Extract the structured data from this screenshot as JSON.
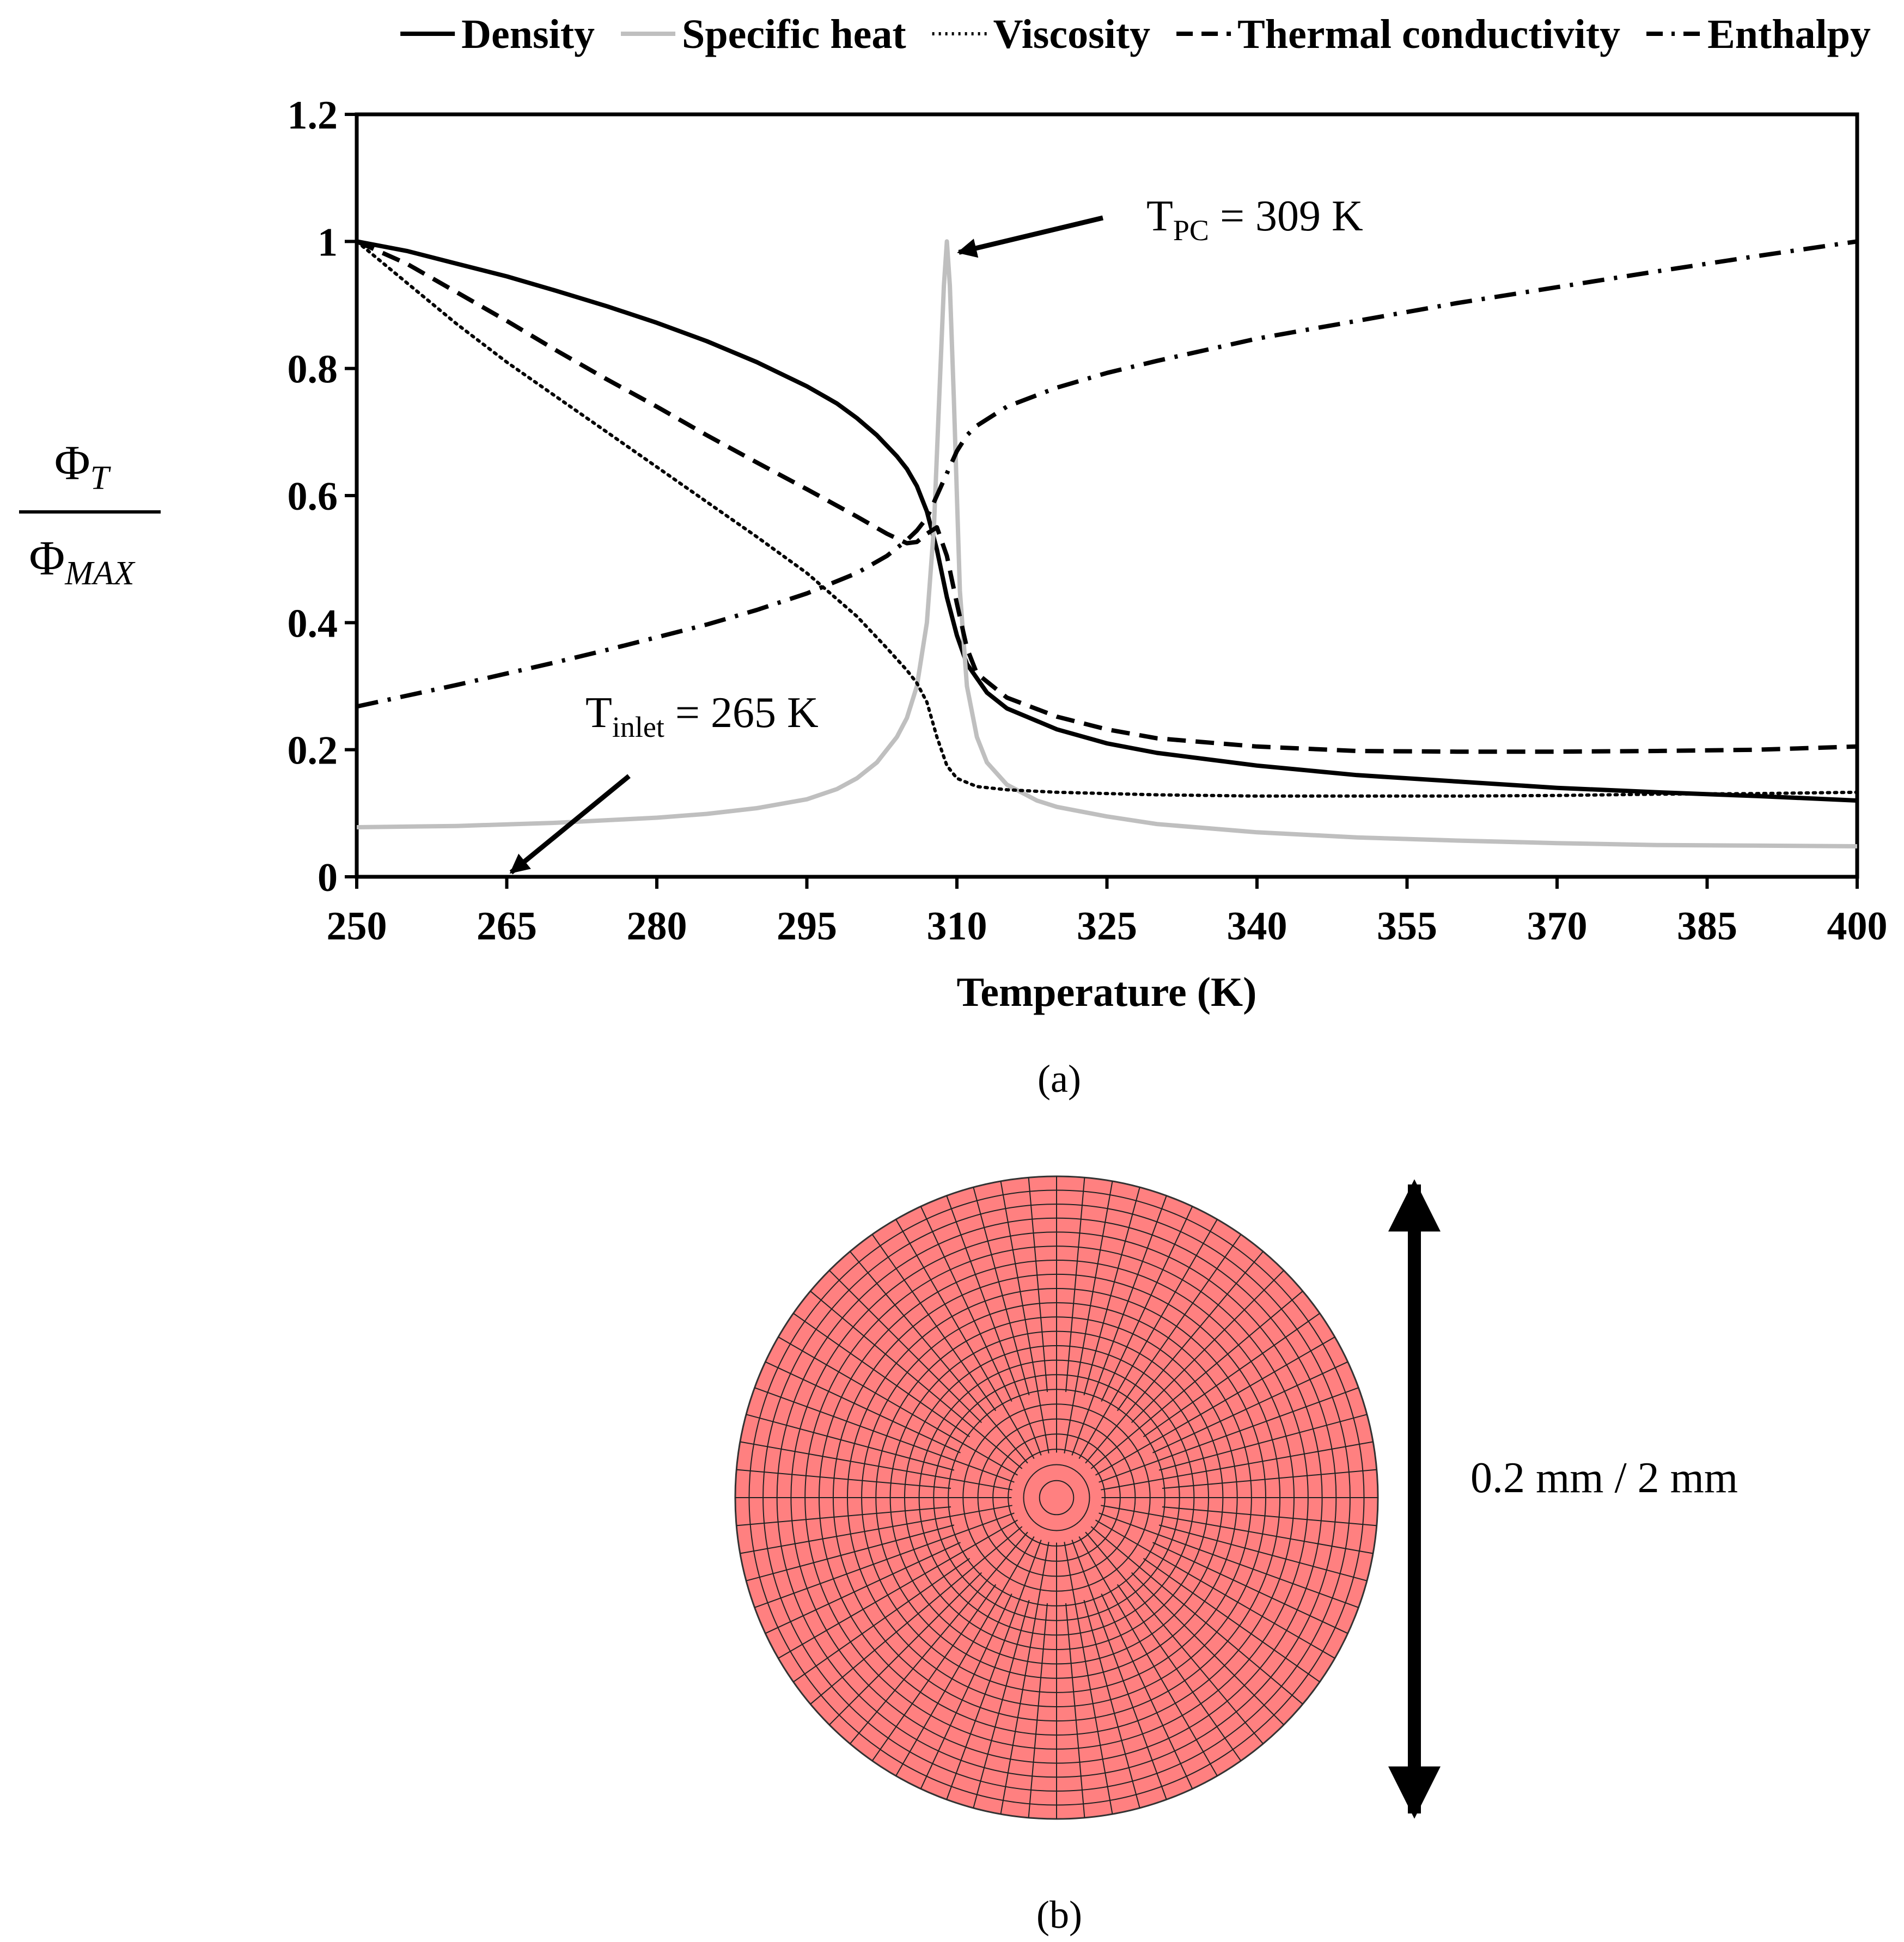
{
  "panel_a_caption": "(a)",
  "panel_b_caption": "(b)",
  "chart_data": {
    "type": "line",
    "title": "",
    "xlabel": "Temperature (K)",
    "ylabel": {
      "numerator": "Φ",
      "numerator_sub": "T",
      "denominator": "Φ",
      "denominator_sub": "MAX"
    },
    "xlim": [
      250,
      400
    ],
    "ylim": [
      0,
      1.2
    ],
    "xticks": [
      "250",
      "265",
      "280",
      "295",
      "310",
      "325",
      "340",
      "355",
      "370",
      "385",
      "400"
    ],
    "yticks": [
      "0",
      "0.2",
      "0.4",
      "0.6",
      "0.8",
      "1",
      "1.2"
    ],
    "legend_position": "top",
    "series": [
      {
        "name": "Density",
        "color": "#000000",
        "style": "solid",
        "points": [
          [
            250,
            1.0
          ],
          [
            255,
            0.985
          ],
          [
            260,
            0.965
          ],
          [
            265,
            0.945
          ],
          [
            270,
            0.922
          ],
          [
            275,
            0.898
          ],
          [
            280,
            0.872
          ],
          [
            285,
            0.843
          ],
          [
            290,
            0.81
          ],
          [
            295,
            0.772
          ],
          [
            298,
            0.745
          ],
          [
            300,
            0.722
          ],
          [
            302,
            0.695
          ],
          [
            304,
            0.662
          ],
          [
            305,
            0.642
          ],
          [
            306,
            0.615
          ],
          [
            307,
            0.575
          ],
          [
            308,
            0.515
          ],
          [
            309,
            0.44
          ],
          [
            310,
            0.38
          ],
          [
            311,
            0.335
          ],
          [
            313,
            0.29
          ],
          [
            315,
            0.265
          ],
          [
            320,
            0.232
          ],
          [
            325,
            0.21
          ],
          [
            330,
            0.195
          ],
          [
            340,
            0.175
          ],
          [
            350,
            0.16
          ],
          [
            360,
            0.15
          ],
          [
            370,
            0.14
          ],
          [
            380,
            0.133
          ],
          [
            390,
            0.127
          ],
          [
            400,
            0.12
          ]
        ]
      },
      {
        "name": "Specific heat",
        "color": "#bfbfbf",
        "style": "solid",
        "points": [
          [
            250,
            0.078
          ],
          [
            260,
            0.08
          ],
          [
            270,
            0.085
          ],
          [
            280,
            0.093
          ],
          [
            285,
            0.099
          ],
          [
            290,
            0.108
          ],
          [
            295,
            0.122
          ],
          [
            298,
            0.138
          ],
          [
            300,
            0.155
          ],
          [
            302,
            0.18
          ],
          [
            304,
            0.22
          ],
          [
            305,
            0.25
          ],
          [
            306,
            0.3
          ],
          [
            307,
            0.4
          ],
          [
            307.7,
            0.55
          ],
          [
            308.3,
            0.78
          ],
          [
            308.7,
            0.93
          ],
          [
            309,
            1.0
          ],
          [
            309.3,
            0.93
          ],
          [
            309.7,
            0.75
          ],
          [
            310.3,
            0.45
          ],
          [
            311,
            0.3
          ],
          [
            312,
            0.22
          ],
          [
            313,
            0.18
          ],
          [
            315,
            0.145
          ],
          [
            318,
            0.12
          ],
          [
            320,
            0.11
          ],
          [
            325,
            0.095
          ],
          [
            330,
            0.083
          ],
          [
            340,
            0.07
          ],
          [
            350,
            0.062
          ],
          [
            360,
            0.057
          ],
          [
            370,
            0.053
          ],
          [
            380,
            0.05
          ],
          [
            390,
            0.049
          ],
          [
            400,
            0.048
          ]
        ]
      },
      {
        "name": "Viscosity",
        "color": "#000000",
        "style": "dotted",
        "points": [
          [
            250,
            1.0
          ],
          [
            255,
            0.935
          ],
          [
            260,
            0.87
          ],
          [
            265,
            0.81
          ],
          [
            270,
            0.755
          ],
          [
            275,
            0.7
          ],
          [
            280,
            0.645
          ],
          [
            285,
            0.59
          ],
          [
            290,
            0.535
          ],
          [
            295,
            0.478
          ],
          [
            300,
            0.41
          ],
          [
            303,
            0.36
          ],
          [
            305,
            0.325
          ],
          [
            306,
            0.305
          ],
          [
            307,
            0.275
          ],
          [
            308,
            0.22
          ],
          [
            309,
            0.175
          ],
          [
            310,
            0.155
          ],
          [
            312,
            0.142
          ],
          [
            315,
            0.137
          ],
          [
            320,
            0.133
          ],
          [
            330,
            0.129
          ],
          [
            340,
            0.127
          ],
          [
            350,
            0.127
          ],
          [
            360,
            0.127
          ],
          [
            370,
            0.128
          ],
          [
            380,
            0.13
          ],
          [
            390,
            0.131
          ],
          [
            400,
            0.133
          ]
        ]
      },
      {
        "name": "Thermal conductivity",
        "color": "#000000",
        "style": "dashed",
        "points": [
          [
            250,
            1.0
          ],
          [
            255,
            0.965
          ],
          [
            260,
            0.92
          ],
          [
            265,
            0.875
          ],
          [
            270,
            0.828
          ],
          [
            275,
            0.783
          ],
          [
            280,
            0.74
          ],
          [
            285,
            0.695
          ],
          [
            290,
            0.652
          ],
          [
            295,
            0.61
          ],
          [
            300,
            0.567
          ],
          [
            303,
            0.54
          ],
          [
            305,
            0.525
          ],
          [
            306,
            0.527
          ],
          [
            307,
            0.54
          ],
          [
            308,
            0.55
          ],
          [
            309,
            0.505
          ],
          [
            310,
            0.43
          ],
          [
            311,
            0.36
          ],
          [
            312,
            0.32
          ],
          [
            315,
            0.282
          ],
          [
            320,
            0.252
          ],
          [
            325,
            0.232
          ],
          [
            330,
            0.218
          ],
          [
            340,
            0.205
          ],
          [
            350,
            0.198
          ],
          [
            360,
            0.197
          ],
          [
            370,
            0.197
          ],
          [
            380,
            0.198
          ],
          [
            390,
            0.2
          ],
          [
            400,
            0.205
          ]
        ]
      },
      {
        "name": "Enthalpy",
        "color": "#000000",
        "style": "dashdot",
        "points": [
          [
            250,
            0.268
          ],
          [
            255,
            0.285
          ],
          [
            260,
            0.302
          ],
          [
            265,
            0.32
          ],
          [
            270,
            0.338
          ],
          [
            275,
            0.357
          ],
          [
            280,
            0.377
          ],
          [
            285,
            0.397
          ],
          [
            290,
            0.42
          ],
          [
            295,
            0.446
          ],
          [
            300,
            0.478
          ],
          [
            303,
            0.505
          ],
          [
            305,
            0.53
          ],
          [
            306,
            0.545
          ],
          [
            307,
            0.565
          ],
          [
            308,
            0.6
          ],
          [
            309,
            0.635
          ],
          [
            310,
            0.67
          ],
          [
            311,
            0.695
          ],
          [
            312,
            0.71
          ],
          [
            315,
            0.74
          ],
          [
            320,
            0.77
          ],
          [
            325,
            0.793
          ],
          [
            330,
            0.812
          ],
          [
            340,
            0.847
          ],
          [
            350,
            0.875
          ],
          [
            360,
            0.903
          ],
          [
            370,
            0.928
          ],
          [
            380,
            0.953
          ],
          [
            390,
            0.977
          ],
          [
            400,
            1.0
          ]
        ]
      }
    ],
    "annotations": [
      {
        "base": "T",
        "subscript": "PC",
        "suffix": " = 309 K",
        "points_to": [
          309,
          1.0
        ]
      },
      {
        "base": "T",
        "subscript": "inlet",
        "suffix": " = 265 K",
        "points_to": [
          265,
          0.0
        ]
      }
    ]
  },
  "mesh": {
    "fill_color": "#ff8080",
    "dimension_label": "0.2 mm  / 2 mm"
  }
}
